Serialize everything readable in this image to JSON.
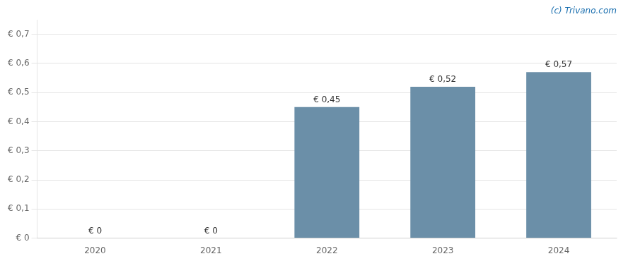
{
  "chart_data": {
    "type": "bar",
    "categories": [
      "2020",
      "2021",
      "2022",
      "2023",
      "2024"
    ],
    "values": [
      0.0,
      0.0,
      0.45,
      0.52,
      0.57
    ],
    "value_labels": [
      "€ 0",
      "€ 0",
      "€ 0,45",
      "€ 0,52",
      "€ 0,57"
    ],
    "data_labels": true,
    "color": "#6b8fa8",
    "ylim": [
      0,
      0.75
    ],
    "yticks": [
      {
        "value": 0.0,
        "label": "€ 0"
      },
      {
        "value": 0.1,
        "label": "€ 0,1"
      },
      {
        "value": 0.2,
        "label": "€ 0,2"
      },
      {
        "value": 0.3,
        "label": "€ 0,3"
      },
      {
        "value": 0.4,
        "label": "€ 0,4"
      },
      {
        "value": 0.5,
        "label": "€ 0,5"
      },
      {
        "value": 0.6,
        "label": "€ 0,6"
      },
      {
        "value": 0.7,
        "label": "€ 0,7"
      }
    ],
    "grid": true,
    "annotations": [
      "(c) Trivano.com"
    ]
  }
}
